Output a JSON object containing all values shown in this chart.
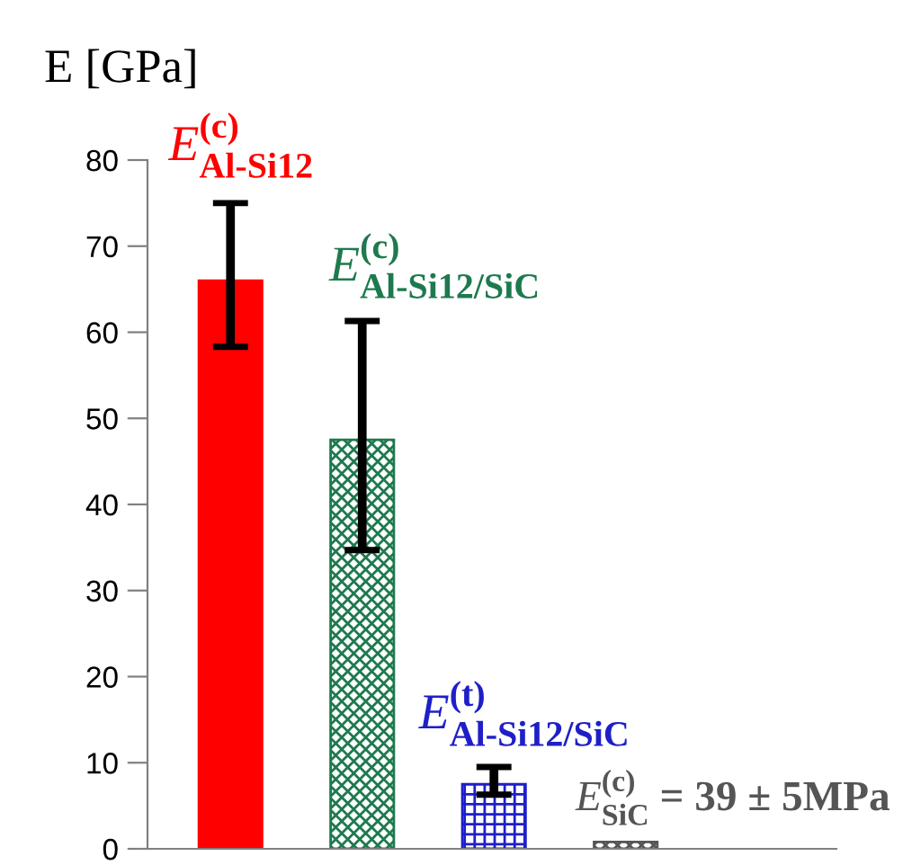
{
  "chart_data": {
    "type": "bar",
    "ylabel": "E [GPa]",
    "categories": [
      null,
      null,
      null,
      null
    ],
    "values": [
      66,
      47.5,
      7.5,
      0.8
    ],
    "errors": [
      [
        58.3,
        75
      ],
      [
        34.7,
        61.3
      ],
      [
        6.3,
        9.5
      ],
      null
    ],
    "colors": [
      "#ff0000",
      "#1e7a4e",
      "#1f1fc8",
      "#555555"
    ],
    "ylim": [
      0,
      80
    ],
    "yticks": [
      0,
      10,
      20,
      30,
      40,
      50,
      60,
      70,
      80
    ],
    "grid": false,
    "annotations": [
      "E$^{(c)}$$_{Al-Si12}$",
      "E$^{(c)}$$_{Al-Si12/SiC}$",
      "E$^{(t)}$$_{Al-Si12/SiC}$",
      "E$^{(c)}$$_{SiC}$ = 39 ± 5MPa"
    ]
  }
}
